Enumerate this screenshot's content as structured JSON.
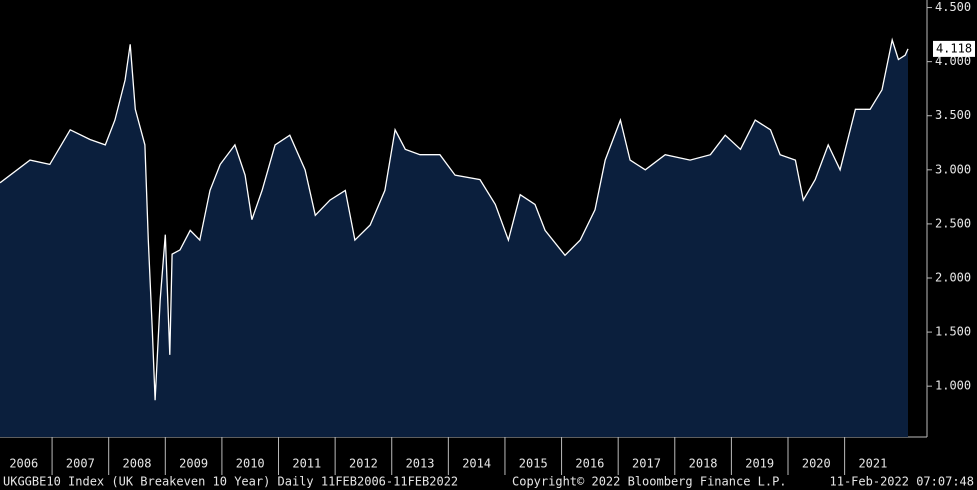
{
  "chart_data": {
    "type": "area",
    "series_name": "UKGGBE10 Index (UK Breakeven 10 Year)  Daily 11FEB2006-11FEB2022",
    "copyright": "Copyright© 2022 Bloomberg Finance L.P.",
    "timestamp": "11-Feb-2022 07:07:48",
    "line_color": "#ffffff",
    "fill_color": "#0b1f3d",
    "x": [
      2006.08,
      2006.61,
      2006.96,
      2007.32,
      2007.67,
      2007.94,
      2008.11,
      2008.29,
      2008.38,
      2008.47,
      2008.64,
      2008.7,
      2008.77,
      2008.82,
      2008.91,
      2009.0,
      2009.08,
      2009.12,
      2009.26,
      2009.44,
      2009.61,
      2009.79,
      2009.97,
      2010.23,
      2010.41,
      2010.53,
      2010.71,
      2010.94,
      2011.2,
      2011.47,
      2011.65,
      2011.91,
      2012.18,
      2012.35,
      2012.62,
      2012.88,
      2013.06,
      2013.24,
      2013.5,
      2013.85,
      2014.12,
      2014.56,
      2014.83,
      2015.06,
      2015.27,
      2015.53,
      2015.71,
      2016.06,
      2016.33,
      2016.59,
      2016.77,
      2017.04,
      2017.21,
      2017.48,
      2017.83,
      2018.27,
      2018.63,
      2018.89,
      2019.16,
      2019.42,
      2019.69,
      2019.86,
      2020.13,
      2020.27,
      2020.48,
      2020.71,
      2020.92,
      2021.19,
      2021.45,
      2021.66,
      2021.84,
      2021.95,
      2022.07,
      2022.12
    ],
    "values": [
      2.88,
      3.09,
      3.05,
      3.37,
      3.28,
      3.23,
      3.46,
      3.83,
      4.16,
      3.56,
      3.23,
      2.35,
      1.52,
      0.87,
      1.8,
      2.4,
      1.29,
      2.22,
      2.26,
      2.44,
      2.35,
      2.81,
      3.05,
      3.23,
      2.95,
      2.54,
      2.81,
      3.23,
      3.32,
      3.0,
      2.58,
      2.72,
      2.81,
      2.35,
      2.49,
      2.81,
      3.37,
      3.19,
      3.14,
      3.14,
      2.95,
      2.91,
      2.68,
      2.35,
      2.77,
      2.68,
      2.44,
      2.21,
      2.35,
      2.63,
      3.09,
      3.46,
      3.09,
      3.0,
      3.14,
      3.09,
      3.14,
      3.32,
      3.19,
      3.46,
      3.37,
      3.14,
      3.09,
      2.72,
      2.91,
      3.23,
      3.0,
      3.56,
      3.56,
      3.74,
      4.2,
      4.02,
      4.06,
      4.118
    ],
    "xlim": [
      2006.08,
      2022.42
    ],
    "xticks": [
      2006,
      2007,
      2008,
      2009,
      2010,
      2011,
      2012,
      2013,
      2014,
      2015,
      2016,
      2017,
      2018,
      2019,
      2020,
      2021
    ],
    "ylim": [
      0.53,
      4.57
    ],
    "yticks": [
      {
        "value": 1,
        "label": "1.000"
      },
      {
        "value": 1.5,
        "label": "1.500"
      },
      {
        "value": 2,
        "label": "2.000"
      },
      {
        "value": 2.5,
        "label": "2.500"
      },
      {
        "value": 3,
        "label": "3.000"
      },
      {
        "value": 3.5,
        "label": "3.500"
      },
      {
        "value": 4,
        "label": "4.000"
      },
      {
        "value": 4.5,
        "label": "4.500"
      }
    ]
  }
}
